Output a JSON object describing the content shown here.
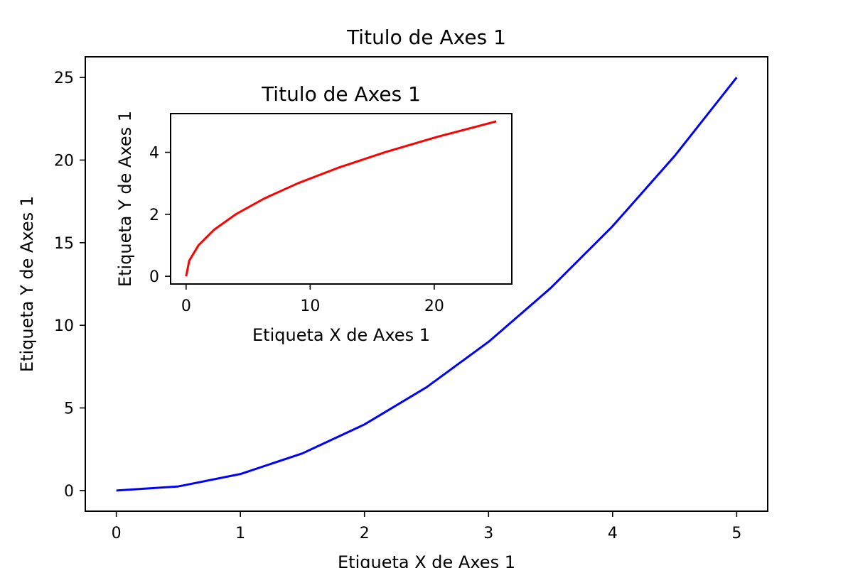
{
  "chart_data": [
    {
      "type": "line",
      "title": "Titulo de Axes 1",
      "xlabel": "Etiqueta X de Axes 1",
      "ylabel": "Etiqueta Y de Axes 1",
      "xlim": [
        -0.25,
        5.25
      ],
      "ylim": [
        -1.25,
        26.25
      ],
      "xticks": [
        0,
        1,
        2,
        3,
        4,
        5
      ],
      "yticks": [
        0,
        5,
        10,
        15,
        20,
        25
      ],
      "grid": false,
      "series": [
        {
          "color": "#0000ff",
          "x": [
            0,
            0.5,
            1,
            1.5,
            2,
            2.5,
            3,
            3.5,
            4,
            4.5,
            5
          ],
          "y": [
            0,
            0.25,
            1,
            2.25,
            4,
            6.25,
            9,
            12.25,
            16,
            20.25,
            25
          ]
        }
      ]
    },
    {
      "type": "line",
      "title": "Titulo de Axes 1",
      "xlabel": "Etiqueta X de Axes 1",
      "ylabel": "Etiqueta Y de Axes 1",
      "xlim": [
        -1.25,
        26.25
      ],
      "ylim": [
        -0.25,
        5.25
      ],
      "xticks": [
        0,
        10,
        20
      ],
      "yticks": [
        0,
        2,
        4
      ],
      "grid": false,
      "series": [
        {
          "color": "#ff0000",
          "x": [
            0,
            0.25,
            1,
            2.25,
            4,
            6.25,
            9,
            12.25,
            16,
            20.25,
            25
          ],
          "y": [
            0,
            0.5,
            1,
            1.5,
            2,
            2.5,
            3,
            3.5,
            4,
            4.5,
            5
          ]
        }
      ]
    }
  ]
}
